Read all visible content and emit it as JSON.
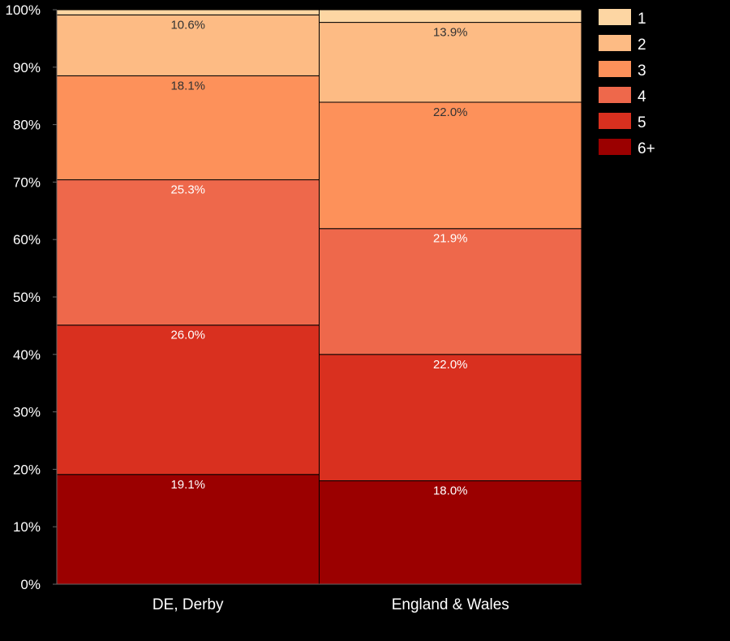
{
  "chart_data": {
    "type": "bar",
    "stacked": true,
    "normalized": true,
    "categories": [
      "DE, Derby",
      "England & Wales"
    ],
    "series": [
      {
        "name": "6+",
        "color": "#9b0000",
        "values": [
          19.1,
          18.0
        ],
        "labels": [
          "19.1%",
          "18.0%"
        ]
      },
      {
        "name": "5",
        "color": "#d9301f",
        "values": [
          26.0,
          22.0
        ],
        "labels": [
          "26.0%",
          "22.0%"
        ]
      },
      {
        "name": "4",
        "color": "#ee684b",
        "values": [
          25.3,
          21.9
        ],
        "labels": [
          "25.3%",
          "21.9%"
        ]
      },
      {
        "name": "3",
        "color": "#fd915a",
        "values": [
          18.1,
          22.0
        ],
        "labels": [
          "18.1%",
          "22.0%"
        ]
      },
      {
        "name": "2",
        "color": "#fdbb84",
        "values": [
          10.6,
          13.9
        ],
        "labels": [
          "10.6%",
          "13.9%"
        ]
      },
      {
        "name": "1",
        "color": "#fdd6a3",
        "values": [
          0.9,
          2.2
        ],
        "labels": [
          "",
          ""
        ]
      }
    ],
    "label_colors": {
      "6+": "#ffffff",
      "5": "#ffffff",
      "4": "#ffffff",
      "3": "#333333",
      "2": "#333333",
      "1": "#333333"
    },
    "y_ticks": [
      "0%",
      "10%",
      "20%",
      "30%",
      "40%",
      "50%",
      "60%",
      "70%",
      "80%",
      "90%",
      "100%"
    ],
    "ylim": [
      0,
      100
    ],
    "legend_order": [
      "1",
      "2",
      "3",
      "4",
      "5",
      "6+"
    ],
    "legend_position": "right",
    "background": "#000000",
    "grid": false
  }
}
